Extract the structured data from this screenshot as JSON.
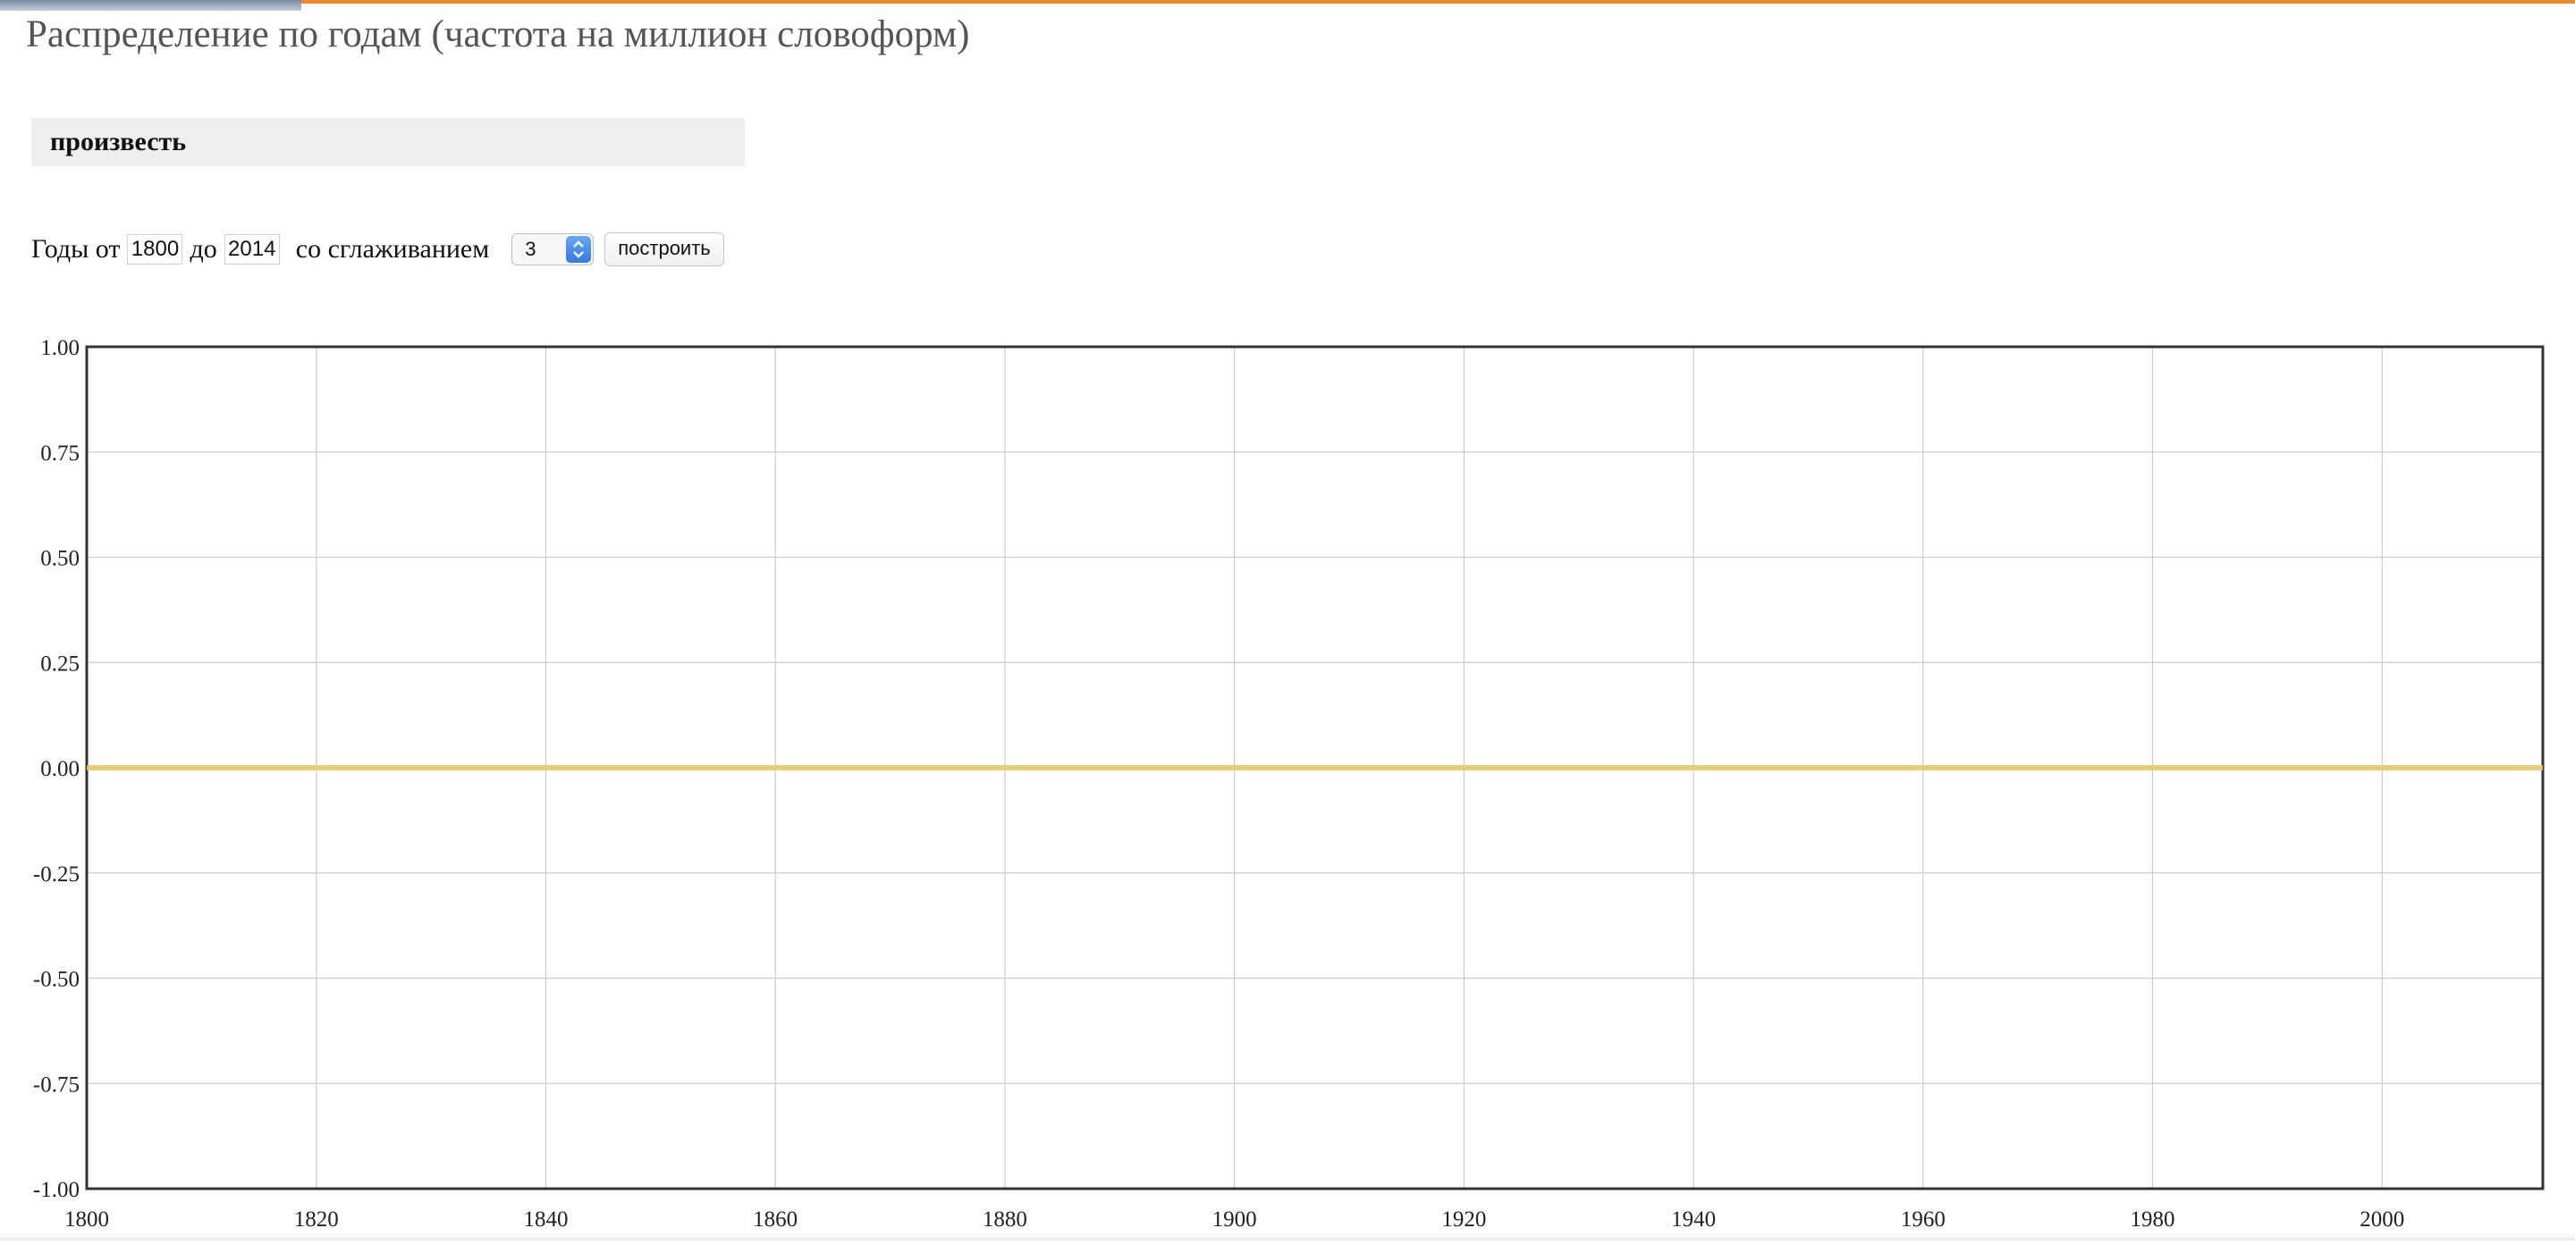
{
  "page": {
    "title": "Распределение по годам (частота на миллион словоформ)"
  },
  "query": {
    "word": "произвесть"
  },
  "controls": {
    "years_from_label": "Годы от",
    "year_from": "1800",
    "years_to_label": "до",
    "year_to": "2014",
    "smoothing_label": "со сглаживанием",
    "smoothing_value": "3",
    "build_label": "построить"
  },
  "colors": {
    "accent_bar": "#f0872a",
    "series_line": "#e8c86a",
    "grid": "#cccccc",
    "frame": "#333333"
  },
  "chart_data": {
    "type": "line",
    "title": "",
    "xlabel": "",
    "ylabel": "",
    "xlim": [
      1800,
      2014
    ],
    "ylim": [
      -1.0,
      1.0
    ],
    "grid": true,
    "legend": "none",
    "x_ticks": [
      "1800",
      "1820",
      "1840",
      "1860",
      "1880",
      "1900",
      "1920",
      "1940",
      "1960",
      "1980",
      "2000"
    ],
    "x_tick_values": [
      1800,
      1820,
      1840,
      1860,
      1880,
      1900,
      1920,
      1940,
      1960,
      1980,
      2000
    ],
    "y_ticks": [
      "1.00",
      "0.75",
      "0.50",
      "0.25",
      "0.00",
      "-0.25",
      "-0.50",
      "-0.75",
      "-1.00"
    ],
    "y_tick_values": [
      1.0,
      0.75,
      0.5,
      0.25,
      0.0,
      -0.25,
      -0.5,
      -0.75,
      -1.0
    ],
    "series": [
      {
        "x": [
          1800,
          2014
        ],
        "y": [
          0.0,
          0.0
        ]
      }
    ]
  }
}
